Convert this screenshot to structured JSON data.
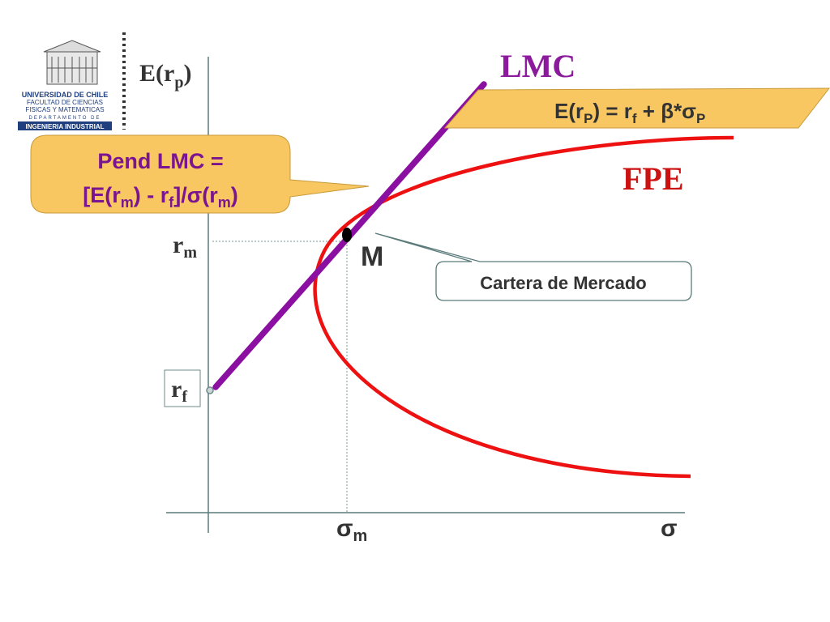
{
  "logo": {
    "line1": "UNIVERSIDAD DE CHILE",
    "line2": "FACULTAD DE CIENCIAS",
    "line3": "FISICAS Y MATEMATICAS",
    "line4": "DEPARTAMENTO DE",
    "line5": "INGENIERIA INDUSTRIAL"
  },
  "axes": {
    "y_label_main": "E(r",
    "y_label_sub": "p",
    "y_label_end": ")",
    "x_label": "σ"
  },
  "labels": {
    "lmc": "LMC",
    "fpe": "FPE",
    "market_point": "M",
    "rm_main": "r",
    "rm_sub": "m",
    "rf_main": "r",
    "rf_sub": "f",
    "sigma_m_main": "σ",
    "sigma_m_sub": "m"
  },
  "formula_callout": {
    "p1": "E(r",
    "p2": "P",
    "p3": ") = r",
    "p4": "f",
    "p5": " + β*σ",
    "p6": "P"
  },
  "slope_callout": {
    "line1": "Pend LMC =",
    "l2a": "[E(r",
    "l2b": "m",
    "l2c": ") - r",
    "l2d": "f",
    "l2e": "]/σ(r",
    "l2f": "m",
    "l2g": ")"
  },
  "market_callout": {
    "text": "Cartera de Mercado"
  },
  "colors": {
    "lmc_line": "#8B0FA0",
    "fpe_curve": "#EE1111",
    "callout_fill": "#F8C761",
    "lmc_text": "#8B1A9C",
    "fpe_text": "#CC1111",
    "slope_text": "#7A1490",
    "axis": "#5a7a7a",
    "logo_blue": "#1F3F7F"
  }
}
